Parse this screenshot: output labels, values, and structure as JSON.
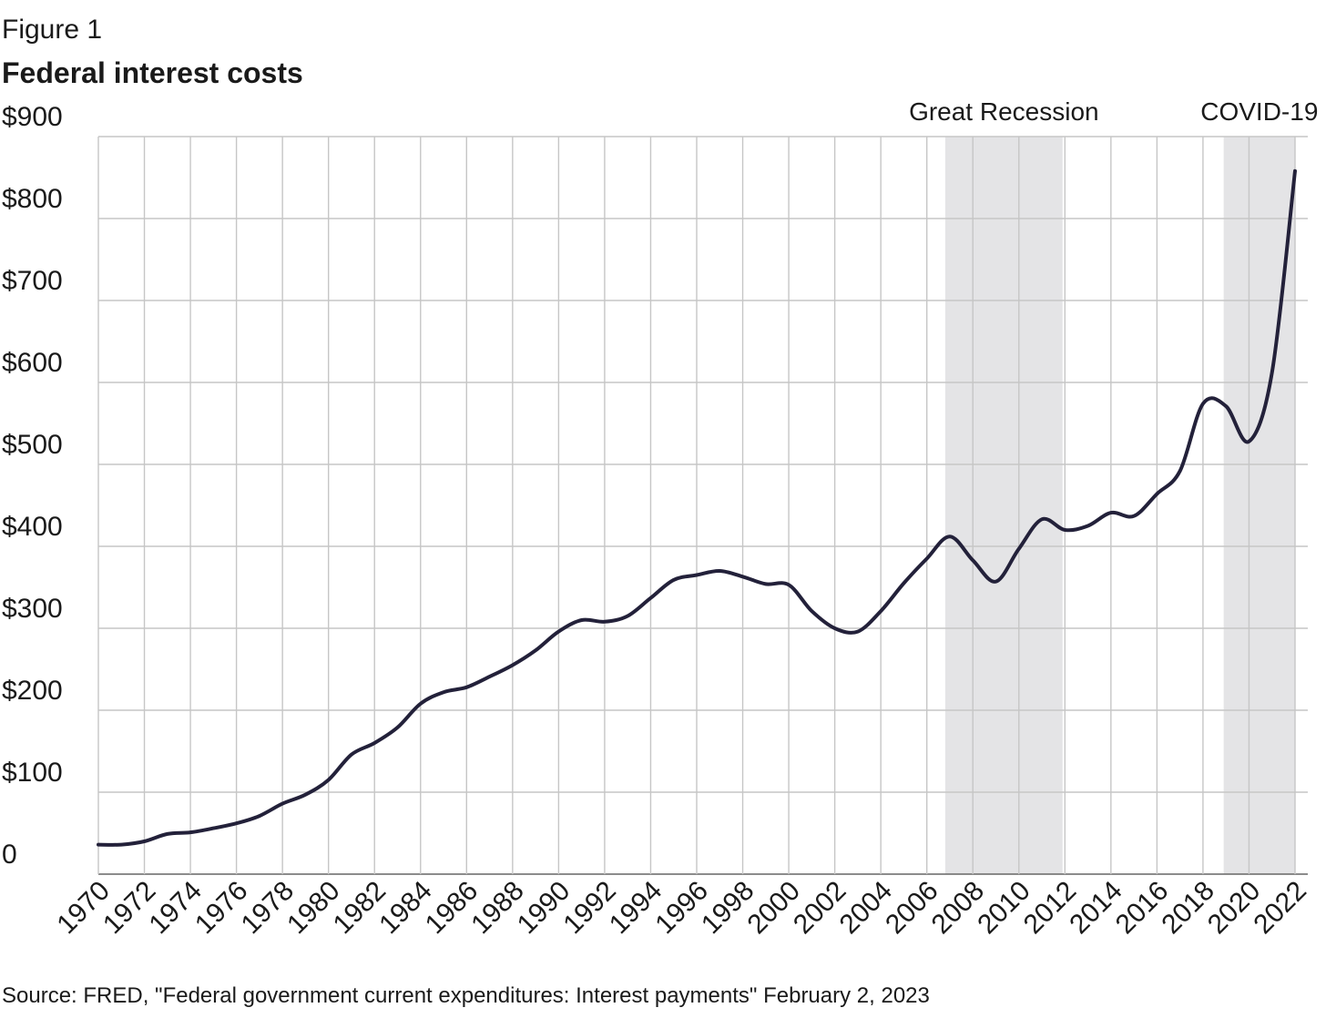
{
  "figure_label": "Figure 1",
  "title": "Federal interest costs",
  "source": "Source: FRED, \"Federal government current expenditures: Interest payments\" February 2, 2023",
  "colors": {
    "line": "#23213a",
    "grid": "#c6c6c6",
    "shade": "#e4e4e6",
    "axis": "#666666"
  },
  "chart_data": {
    "type": "line",
    "title": "Federal interest costs",
    "xlabel": "",
    "ylabel": "",
    "xlim": [
      1970,
      2022
    ],
    "ylim": [
      0,
      900
    ],
    "y_ticks": [
      {
        "value": 0,
        "label": "0"
      },
      {
        "value": 100,
        "label": "$100"
      },
      {
        "value": 200,
        "label": "$200"
      },
      {
        "value": 300,
        "label": "$300"
      },
      {
        "value": 400,
        "label": "$400"
      },
      {
        "value": 500,
        "label": "$500"
      },
      {
        "value": 600,
        "label": "$600"
      },
      {
        "value": 700,
        "label": "$700"
      },
      {
        "value": 800,
        "label": "$800"
      },
      {
        "value": 900,
        "label": "$900"
      }
    ],
    "x_tick_labels": [
      "1970",
      "1972",
      "1974",
      "1976",
      "1978",
      "1980",
      "1982",
      "1984",
      "1986",
      "1988",
      "1990",
      "1992",
      "1994",
      "1996",
      "1998",
      "2000",
      "2002",
      "2004",
      "2006",
      "2008",
      "2010",
      "2012",
      "2014",
      "2016",
      "2018",
      "2020",
      "2022"
    ],
    "grid": true,
    "shaded_regions": [
      {
        "label": "Great Recession",
        "start": 2006.8,
        "end": 2011.9
      },
      {
        "label": "COVID-19",
        "start": 2018.9,
        "end": 2022.0
      }
    ],
    "series": [
      {
        "name": "",
        "x": [
          1970,
          1971,
          1972,
          1973,
          1974,
          1975,
          1976,
          1977,
          1978,
          1979,
          1980,
          1981,
          1982,
          1983,
          1984,
          1985,
          1986,
          1987,
          1988,
          1989,
          1990,
          1991,
          1992,
          1993,
          1994,
          1995,
          1996,
          1997,
          1998,
          1999,
          2000,
          2001,
          2002,
          2003,
          2004,
          2005,
          2006,
          2007,
          2008,
          2009,
          2010,
          2011,
          2012,
          2013,
          2014,
          2015,
          2016,
          2017,
          2018,
          2019,
          2020,
          2021,
          2022
        ],
        "y": [
          36,
          36,
          40,
          49,
          51,
          56,
          62,
          71,
          86,
          97,
          115,
          146,
          160,
          179,
          208,
          222,
          228,
          241,
          255,
          273,
          296,
          310,
          308,
          315,
          337,
          359,
          365,
          370,
          363,
          354,
          353,
          321,
          300,
          296,
          321,
          355,
          385,
          412,
          383,
          357,
          397,
          433,
          420,
          425,
          441,
          437,
          464,
          492,
          574,
          571,
          528,
          612,
          858
        ]
      }
    ]
  }
}
